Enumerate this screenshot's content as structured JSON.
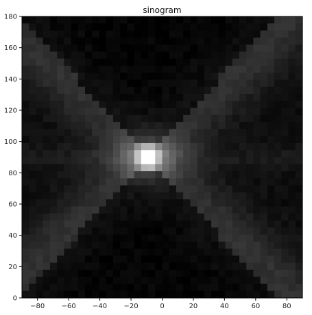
{
  "chart_data": {
    "type": "heatmap",
    "title": "sinogram",
    "xlabel": "",
    "ylabel": "",
    "colormap": "gray",
    "xlim": [
      -90,
      90
    ],
    "ylim": [
      0,
      180
    ],
    "x_ticks": [
      -80,
      -60,
      -40,
      -20,
      0,
      20,
      40,
      60,
      80
    ],
    "y_ticks": [
      0,
      20,
      40,
      60,
      80,
      100,
      120,
      140,
      160,
      180
    ],
    "grid": false,
    "grid_resolution": {
      "columns": 40,
      "rows": 40
    },
    "value_range": [
      0,
      1
    ],
    "peak": {
      "x": -9,
      "y": 90,
      "value": 1.0
    },
    "features": [
      {
        "name": "bright-center",
        "x": -9,
        "y": 90
      },
      {
        "name": "diagonal-band-rising",
        "x_range": [
          -80,
          90
        ],
        "y_range": [
          20,
          180
        ]
      },
      {
        "name": "diagonal-band-falling",
        "x_range": [
          -80,
          90
        ],
        "y_range": [
          0,
          160
        ]
      },
      {
        "name": "horizontal-band",
        "y": 90
      }
    ]
  }
}
